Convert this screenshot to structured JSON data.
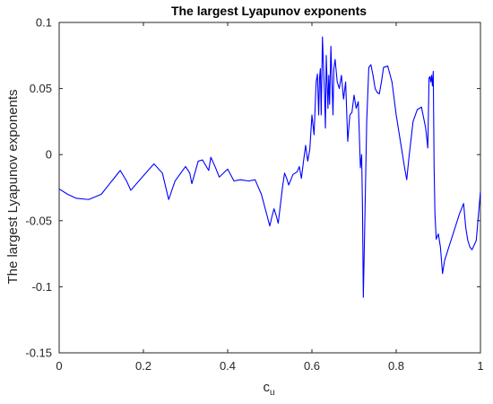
{
  "chart_data": {
    "type": "line",
    "title": "The largest Lyapunov exponents",
    "xlabel": "c",
    "xlabel_subscript": "u",
    "ylabel": "The largest Lyapunov exponents",
    "xlim": [
      0,
      1
    ],
    "ylim": [
      -0.15,
      0.1
    ],
    "xticks": [
      0,
      0.2,
      0.4,
      0.6,
      0.8,
      1
    ],
    "xtick_labels": [
      "0",
      "0.2",
      "0.4",
      "0.6",
      "0.8",
      "1"
    ],
    "yticks": [
      -0.15,
      -0.1,
      -0.05,
      0,
      0.05,
      0.1
    ],
    "ytick_labels": [
      "-0.15",
      "-0.1",
      "-0.05",
      "0",
      "0.05",
      "0.1"
    ],
    "grid": false,
    "colors": {
      "series": "#0000ff",
      "axes": "#262626",
      "background": "#ffffff"
    },
    "series": [
      {
        "x": [
          0,
          0.02,
          0.04,
          0.07,
          0.1,
          0.12,
          0.145,
          0.16,
          0.17,
          0.2,
          0.225,
          0.245,
          0.26,
          0.275,
          0.3,
          0.31,
          0.315,
          0.33,
          0.34,
          0.355,
          0.36,
          0.37,
          0.38,
          0.4,
          0.415,
          0.43,
          0.45,
          0.465,
          0.48,
          0.495,
          0.5,
          0.505,
          0.51,
          0.515,
          0.52,
          0.53,
          0.535,
          0.54,
          0.545,
          0.555,
          0.565,
          0.57,
          0.575,
          0.58,
          0.585,
          0.59,
          0.595,
          0.6,
          0.605,
          0.61,
          0.613,
          0.616,
          0.618,
          0.62,
          0.622,
          0.625,
          0.627,
          0.63,
          0.632,
          0.634,
          0.636,
          0.638,
          0.64,
          0.642,
          0.645,
          0.648,
          0.65,
          0.652,
          0.655,
          0.66,
          0.665,
          0.67,
          0.675,
          0.68,
          0.685,
          0.69,
          0.695,
          0.7,
          0.705,
          0.71,
          0.715,
          0.718,
          0.72,
          0.722,
          0.725,
          0.73,
          0.735,
          0.74,
          0.745,
          0.75,
          0.755,
          0.76,
          0.765,
          0.77,
          0.78,
          0.79,
          0.8,
          0.81,
          0.82,
          0.825,
          0.83,
          0.84,
          0.85,
          0.86,
          0.87,
          0.875,
          0.878,
          0.88,
          0.882,
          0.884,
          0.886,
          0.888,
          0.89,
          0.892,
          0.895,
          0.9,
          0.905,
          0.91,
          0.915,
          0.92,
          0.93,
          0.94,
          0.95,
          0.96,
          0.965,
          0.97,
          0.975,
          0.98,
          0.99,
          1.0
        ],
        "values": [
          -0.026,
          -0.03,
          -0.033,
          -0.034,
          -0.03,
          -0.022,
          -0.012,
          -0.02,
          -0.027,
          -0.016,
          -0.007,
          -0.014,
          -0.034,
          -0.02,
          -0.009,
          -0.014,
          -0.022,
          -0.005,
          -0.004,
          -0.012,
          -0.002,
          -0.009,
          -0.017,
          -0.011,
          -0.02,
          -0.019,
          -0.02,
          -0.019,
          -0.03,
          -0.048,
          -0.054,
          -0.047,
          -0.041,
          -0.046,
          -0.052,
          -0.025,
          -0.014,
          -0.018,
          -0.023,
          -0.015,
          -0.013,
          -0.009,
          -0.018,
          -0.005,
          0.007,
          -0.005,
          0.004,
          0.03,
          0.015,
          0.055,
          0.061,
          0.03,
          0.058,
          0.065,
          0.03,
          0.089,
          0.07,
          0.045,
          0.02,
          0.075,
          0.055,
          0.035,
          0.06,
          0.038,
          0.082,
          0.05,
          0.03,
          0.065,
          0.072,
          0.055,
          0.05,
          0.06,
          0.042,
          0.055,
          0.01,
          0.03,
          0.032,
          0.045,
          0.035,
          0.04,
          -0.01,
          0.0,
          -0.04,
          -0.108,
          -0.06,
          0.025,
          0.066,
          0.068,
          0.06,
          0.05,
          0.047,
          0.046,
          0.055,
          0.066,
          0.067,
          0.055,
          0.03,
          0.01,
          -0.01,
          -0.019,
          -0.003,
          0.025,
          0.034,
          0.036,
          0.02,
          0.005,
          0.058,
          0.059,
          0.055,
          0.06,
          0.052,
          0.063,
          -0.01,
          -0.045,
          -0.064,
          -0.06,
          -0.07,
          -0.09,
          -0.08,
          -0.075,
          -0.065,
          -0.055,
          -0.045,
          -0.037,
          -0.055,
          -0.065,
          -0.07,
          -0.072,
          -0.065,
          -0.028
        ]
      }
    ]
  }
}
